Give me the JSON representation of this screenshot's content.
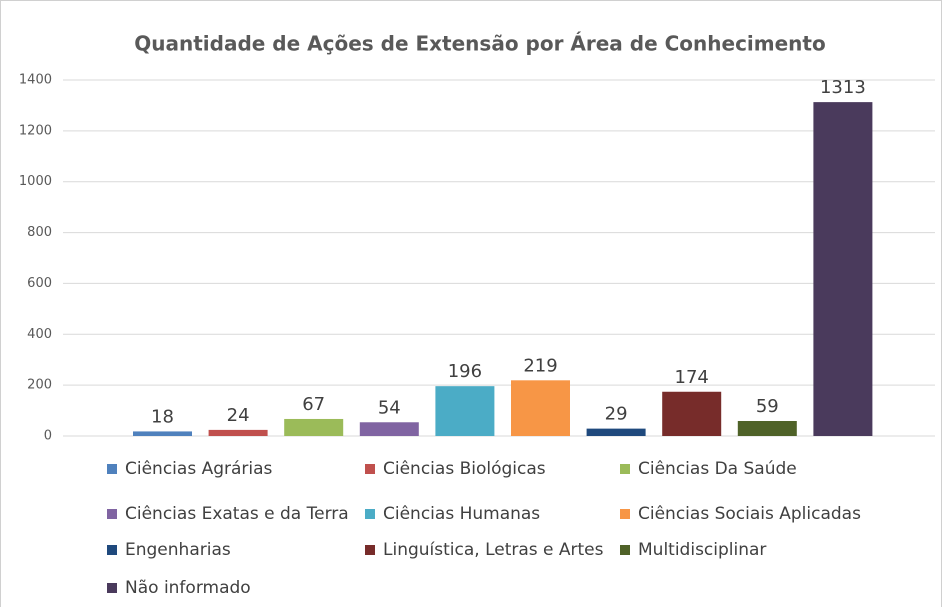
{
  "chart_data": {
    "type": "bar",
    "title": "Quantidade de Ações de Extensão por Área de Conhecimento",
    "series": [
      {
        "name": "Ciências Agrárias",
        "color": "#4f81bd",
        "values": [
          18
        ]
      },
      {
        "name": "Ciências Biológicas",
        "color": "#c0504d",
        "values": [
          24
        ]
      },
      {
        "name": "Ciências Da Saúde",
        "color": "#9bbb59",
        "values": [
          67
        ]
      },
      {
        "name": "Ciências Exatas e da Terra",
        "color": "#8064a2",
        "values": [
          54
        ]
      },
      {
        "name": "Ciências Humanas",
        "color": "#4bacc6",
        "values": [
          196
        ]
      },
      {
        "name": "Ciências Sociais Aplicadas",
        "color": "#f79646",
        "values": [
          219
        ]
      },
      {
        "name": "Engenharias",
        "color": "#1f497d",
        "values": [
          29
        ]
      },
      {
        "name": "Linguística, Letras e Artes",
        "color": "#772c2a",
        "values": [
          174
        ]
      },
      {
        "name": "Multidisciplinar",
        "color": "#4f6228",
        "values": [
          59
        ]
      },
      {
        "name": "Não informado",
        "color": "#4a3a5c",
        "values": [
          1313
        ]
      }
    ],
    "ylim": [
      0,
      1400
    ],
    "yticks": [
      0,
      200,
      400,
      600,
      800,
      1000,
      1200,
      1400
    ],
    "grid": true,
    "legend": "bottom"
  }
}
